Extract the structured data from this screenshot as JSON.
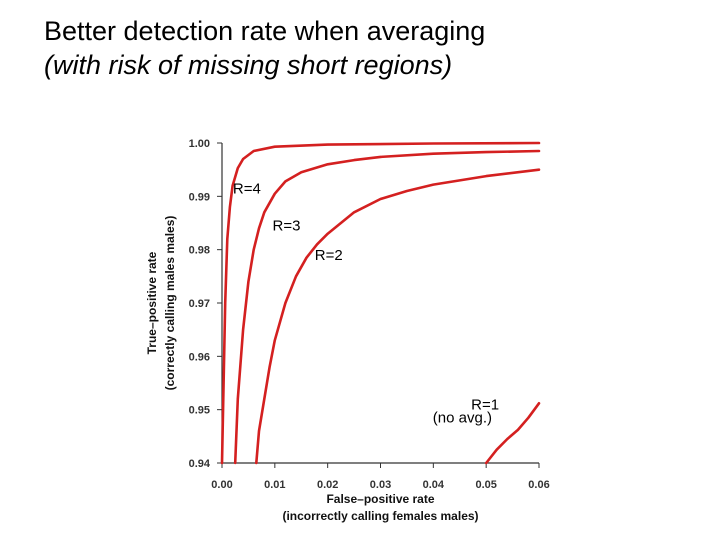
{
  "slide": {
    "title_line1": "Better detection rate when averaging",
    "title_line2": "(with risk of missing short regions)"
  },
  "chart_data": {
    "type": "line",
    "xlabel": "False–positive rate",
    "xlabel2": "(incorrectly calling females males)",
    "ylabel": "True–positive rate",
    "ylabel2": "(correctly calling males males)",
    "xlim": [
      0,
      0.06
    ],
    "ylim": [
      0.94,
      1.0
    ],
    "xticks": [
      "0.00",
      "0.01",
      "0.02",
      "0.03",
      "0.04",
      "0.05",
      "0.06"
    ],
    "yticks": [
      "1.00",
      "0.99",
      "0.98",
      "0.97",
      "0.96",
      "0.95",
      "0.94"
    ],
    "line_color": "#d42020",
    "grid": false,
    "series": [
      {
        "name": "R=4",
        "label": "R=4",
        "x": [
          0.0,
          0.0003,
          0.0006,
          0.001,
          0.0015,
          0.002,
          0.003,
          0.004,
          0.006,
          0.01,
          0.02,
          0.04,
          0.06
        ],
        "y": [
          0.94,
          0.955,
          0.97,
          0.982,
          0.988,
          0.992,
          0.9953,
          0.997,
          0.9985,
          0.9993,
          0.9997,
          0.9999,
          1.0
        ]
      },
      {
        "name": "R=3",
        "label": "R=3",
        "x": [
          0.0025,
          0.003,
          0.004,
          0.005,
          0.006,
          0.007,
          0.008,
          0.01,
          0.012,
          0.015,
          0.02,
          0.025,
          0.03,
          0.04,
          0.05,
          0.06
        ],
        "y": [
          0.94,
          0.952,
          0.965,
          0.974,
          0.98,
          0.984,
          0.987,
          0.9905,
          0.9928,
          0.9945,
          0.996,
          0.9968,
          0.9974,
          0.998,
          0.9983,
          0.9985
        ]
      },
      {
        "name": "R=2",
        "label": "R=2",
        "x": [
          0.0065,
          0.007,
          0.008,
          0.009,
          0.01,
          0.012,
          0.014,
          0.016,
          0.018,
          0.02,
          0.025,
          0.03,
          0.035,
          0.04,
          0.05,
          0.06
        ],
        "y": [
          0.94,
          0.946,
          0.952,
          0.958,
          0.963,
          0.97,
          0.975,
          0.9785,
          0.981,
          0.983,
          0.987,
          0.9895,
          0.991,
          0.9922,
          0.9938,
          0.995
        ]
      },
      {
        "name": "R=1",
        "label": "R=1",
        "x": [
          0.05,
          0.052,
          0.054,
          0.056,
          0.058,
          0.06
        ],
        "y": [
          0.94,
          0.9425,
          0.9445,
          0.9462,
          0.9485,
          0.9512
        ]
      }
    ],
    "annotations": [
      {
        "text": "R=4",
        "x": 0.0047,
        "y": 0.9915
      },
      {
        "text": "R=3",
        "x": 0.0122,
        "y": 0.9845
      },
      {
        "text": "R=2",
        "x": 0.0202,
        "y": 0.979
      },
      {
        "text": "R=1",
        "x": 0.0498,
        "y": 0.951
      },
      {
        "text": "(no avg.)",
        "x": 0.0455,
        "y": 0.9485
      }
    ]
  }
}
